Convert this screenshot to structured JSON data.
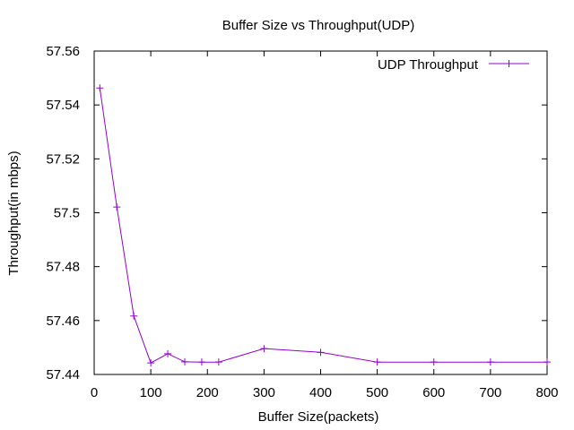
{
  "chart_data": {
    "type": "line",
    "title": "Buffer Size vs Throughput(UDP)",
    "xlabel": "Buffer Size(packets)",
    "ylabel": "Throughput(in mbps)",
    "xlim": [
      0,
      800
    ],
    "ylim": [
      57.44,
      57.56
    ],
    "xticks": [
      0,
      100,
      200,
      300,
      400,
      500,
      600,
      700,
      800
    ],
    "yticks": [
      57.44,
      57.46,
      57.48,
      57.5,
      57.52,
      57.54,
      57.56
    ],
    "xtick_labels": [
      "0",
      "100",
      "200",
      "300",
      "400",
      "500",
      "600",
      "700",
      "800"
    ],
    "ytick_labels": [
      "57.44",
      "57.46",
      "57.48",
      "57.5",
      "57.52",
      "57.54",
      "57.56"
    ],
    "grid": false,
    "legend_position": "top-right",
    "series": [
      {
        "name": "UDP Throughput",
        "color": "#9400d3",
        "marker": "plus",
        "x": [
          10,
          40,
          70,
          100,
          130,
          160,
          190,
          220,
          300,
          400,
          500,
          600,
          700,
          800
        ],
        "y": [
          57.5463,
          57.5021,
          57.4617,
          57.4443,
          57.4477,
          57.4447,
          57.4446,
          57.4446,
          57.4496,
          57.4482,
          57.4446,
          57.4446,
          57.4446,
          57.4446
        ]
      }
    ]
  }
}
